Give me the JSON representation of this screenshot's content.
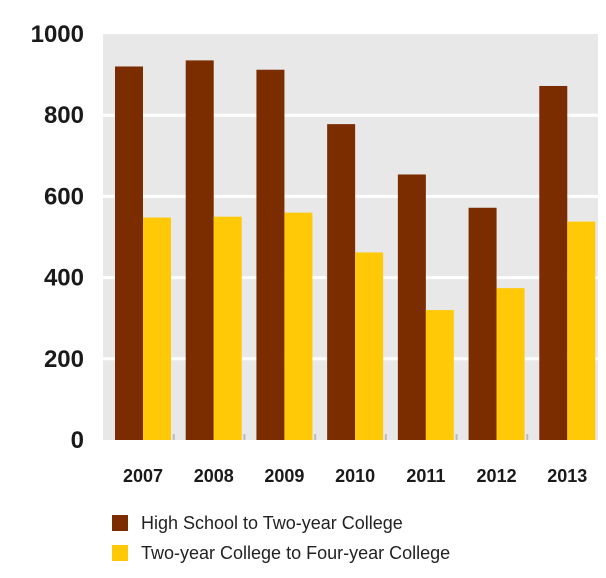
{
  "chart_data": {
    "type": "bar",
    "categories": [
      "2007",
      "2008",
      "2009",
      "2010",
      "2011",
      "2012",
      "2013"
    ],
    "series": [
      {
        "name": "High School to Two-year College",
        "color": "#7B2D00",
        "values": [
          920,
          935,
          912,
          778,
          654,
          572,
          872
        ]
      },
      {
        "name": "Two-year College to Four-year College",
        "color": "#FFC907",
        "values": [
          548,
          550,
          560,
          462,
          320,
          374,
          538
        ]
      }
    ],
    "ylim": [
      0,
      1000
    ],
    "yticks": [
      "0",
      "200",
      "400",
      "600",
      "800",
      "1000"
    ],
    "grid": true,
    "legend_position": "bottom",
    "title": "",
    "xlabel": "",
    "ylabel": ""
  }
}
